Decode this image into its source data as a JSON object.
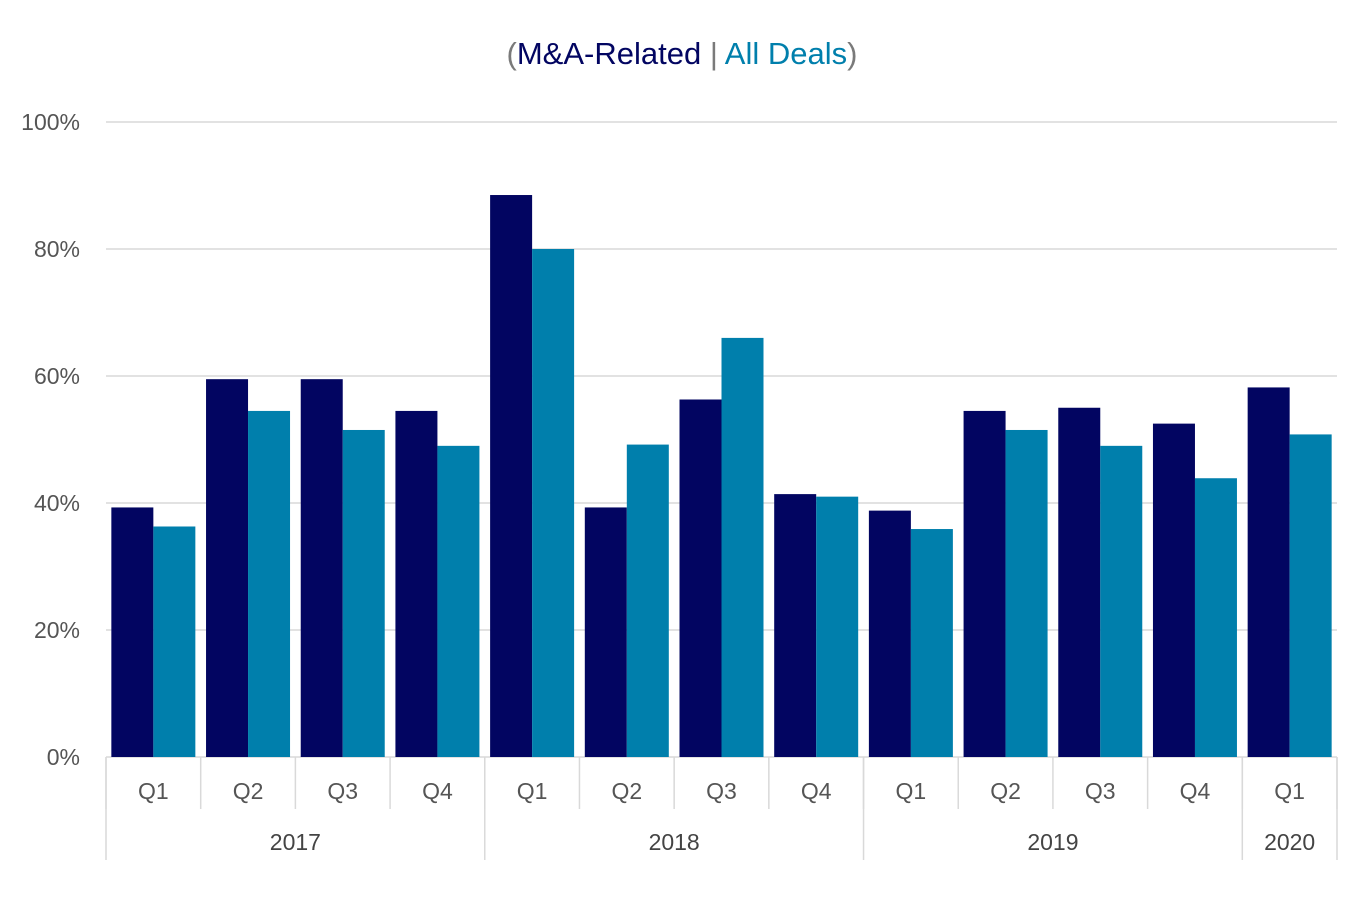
{
  "title": {
    "open_paren": "(",
    "series1_label": "M&A-Related",
    "separator": " | ",
    "series2_label": "All Deals",
    "close_paren": ")"
  },
  "colors": {
    "series1": "#020561",
    "series2": "#007fac",
    "grid": "#d9d9d9",
    "text": "#555555"
  },
  "chart_data": {
    "type": "bar",
    "title": "(M&A-Related | All Deals)",
    "categories": [
      "Q1",
      "Q2",
      "Q3",
      "Q4",
      "Q1",
      "Q2",
      "Q3",
      "Q4",
      "Q1",
      "Q2",
      "Q3",
      "Q4",
      "Q1"
    ],
    "groups": [
      {
        "label": "2017",
        "count": 4
      },
      {
        "label": "2018",
        "count": 4
      },
      {
        "label": "2019",
        "count": 4
      },
      {
        "label": "2020",
        "count": 1
      }
    ],
    "series": [
      {
        "name": "M&A-Related",
        "values": [
          39.3,
          59.5,
          59.5,
          54.5,
          88.5,
          39.3,
          56.3,
          41.4,
          38.8,
          54.5,
          55.0,
          52.5,
          58.2
        ]
      },
      {
        "name": "All Deals",
        "values": [
          36.3,
          54.5,
          51.5,
          49.0,
          80.0,
          49.2,
          66.0,
          41.0,
          35.9,
          51.5,
          49.0,
          43.9,
          50.8
        ]
      }
    ],
    "ylim": [
      0,
      100
    ],
    "yticks": [
      "0%",
      "20%",
      "40%",
      "60%",
      "80%",
      "100%"
    ],
    "ytick_values": [
      0,
      20,
      40,
      60,
      80,
      100
    ],
    "grid": true,
    "legend": "title"
  }
}
